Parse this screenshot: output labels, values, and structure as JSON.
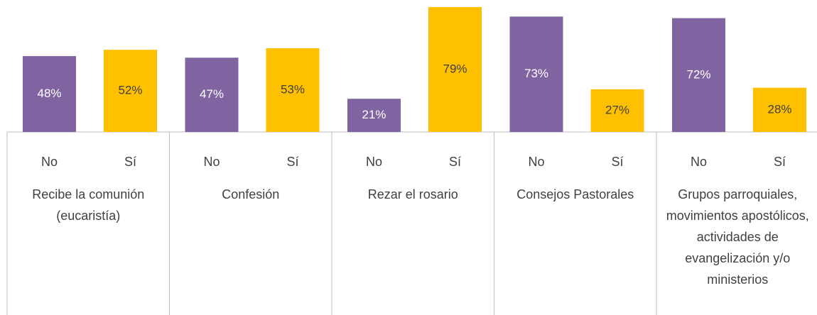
{
  "chart_data": {
    "type": "bar",
    "categories": [
      "Recibe la comunión (eucaristía)",
      "Confesión",
      "Rezar el rosario",
      "Consejos Pastorales",
      "Grupos parroquiales, movimientos apostólicos, actividades de evangelización y/o ministerios"
    ],
    "series": [
      {
        "name": "No",
        "color": "#8064a2",
        "label_color": "#ffffff",
        "values": [
          48,
          47,
          21,
          73,
          72
        ],
        "value_labels": [
          "48%",
          "47%",
          "21%",
          "73%",
          "72%"
        ]
      },
      {
        "name": "Sí",
        "color": "#ffc000",
        "label_color": "#404040",
        "values": [
          52,
          53,
          79,
          27,
          28
        ],
        "value_labels": [
          "52%",
          "53%",
          "79%",
          "27%",
          "28%"
        ]
      }
    ]
  }
}
